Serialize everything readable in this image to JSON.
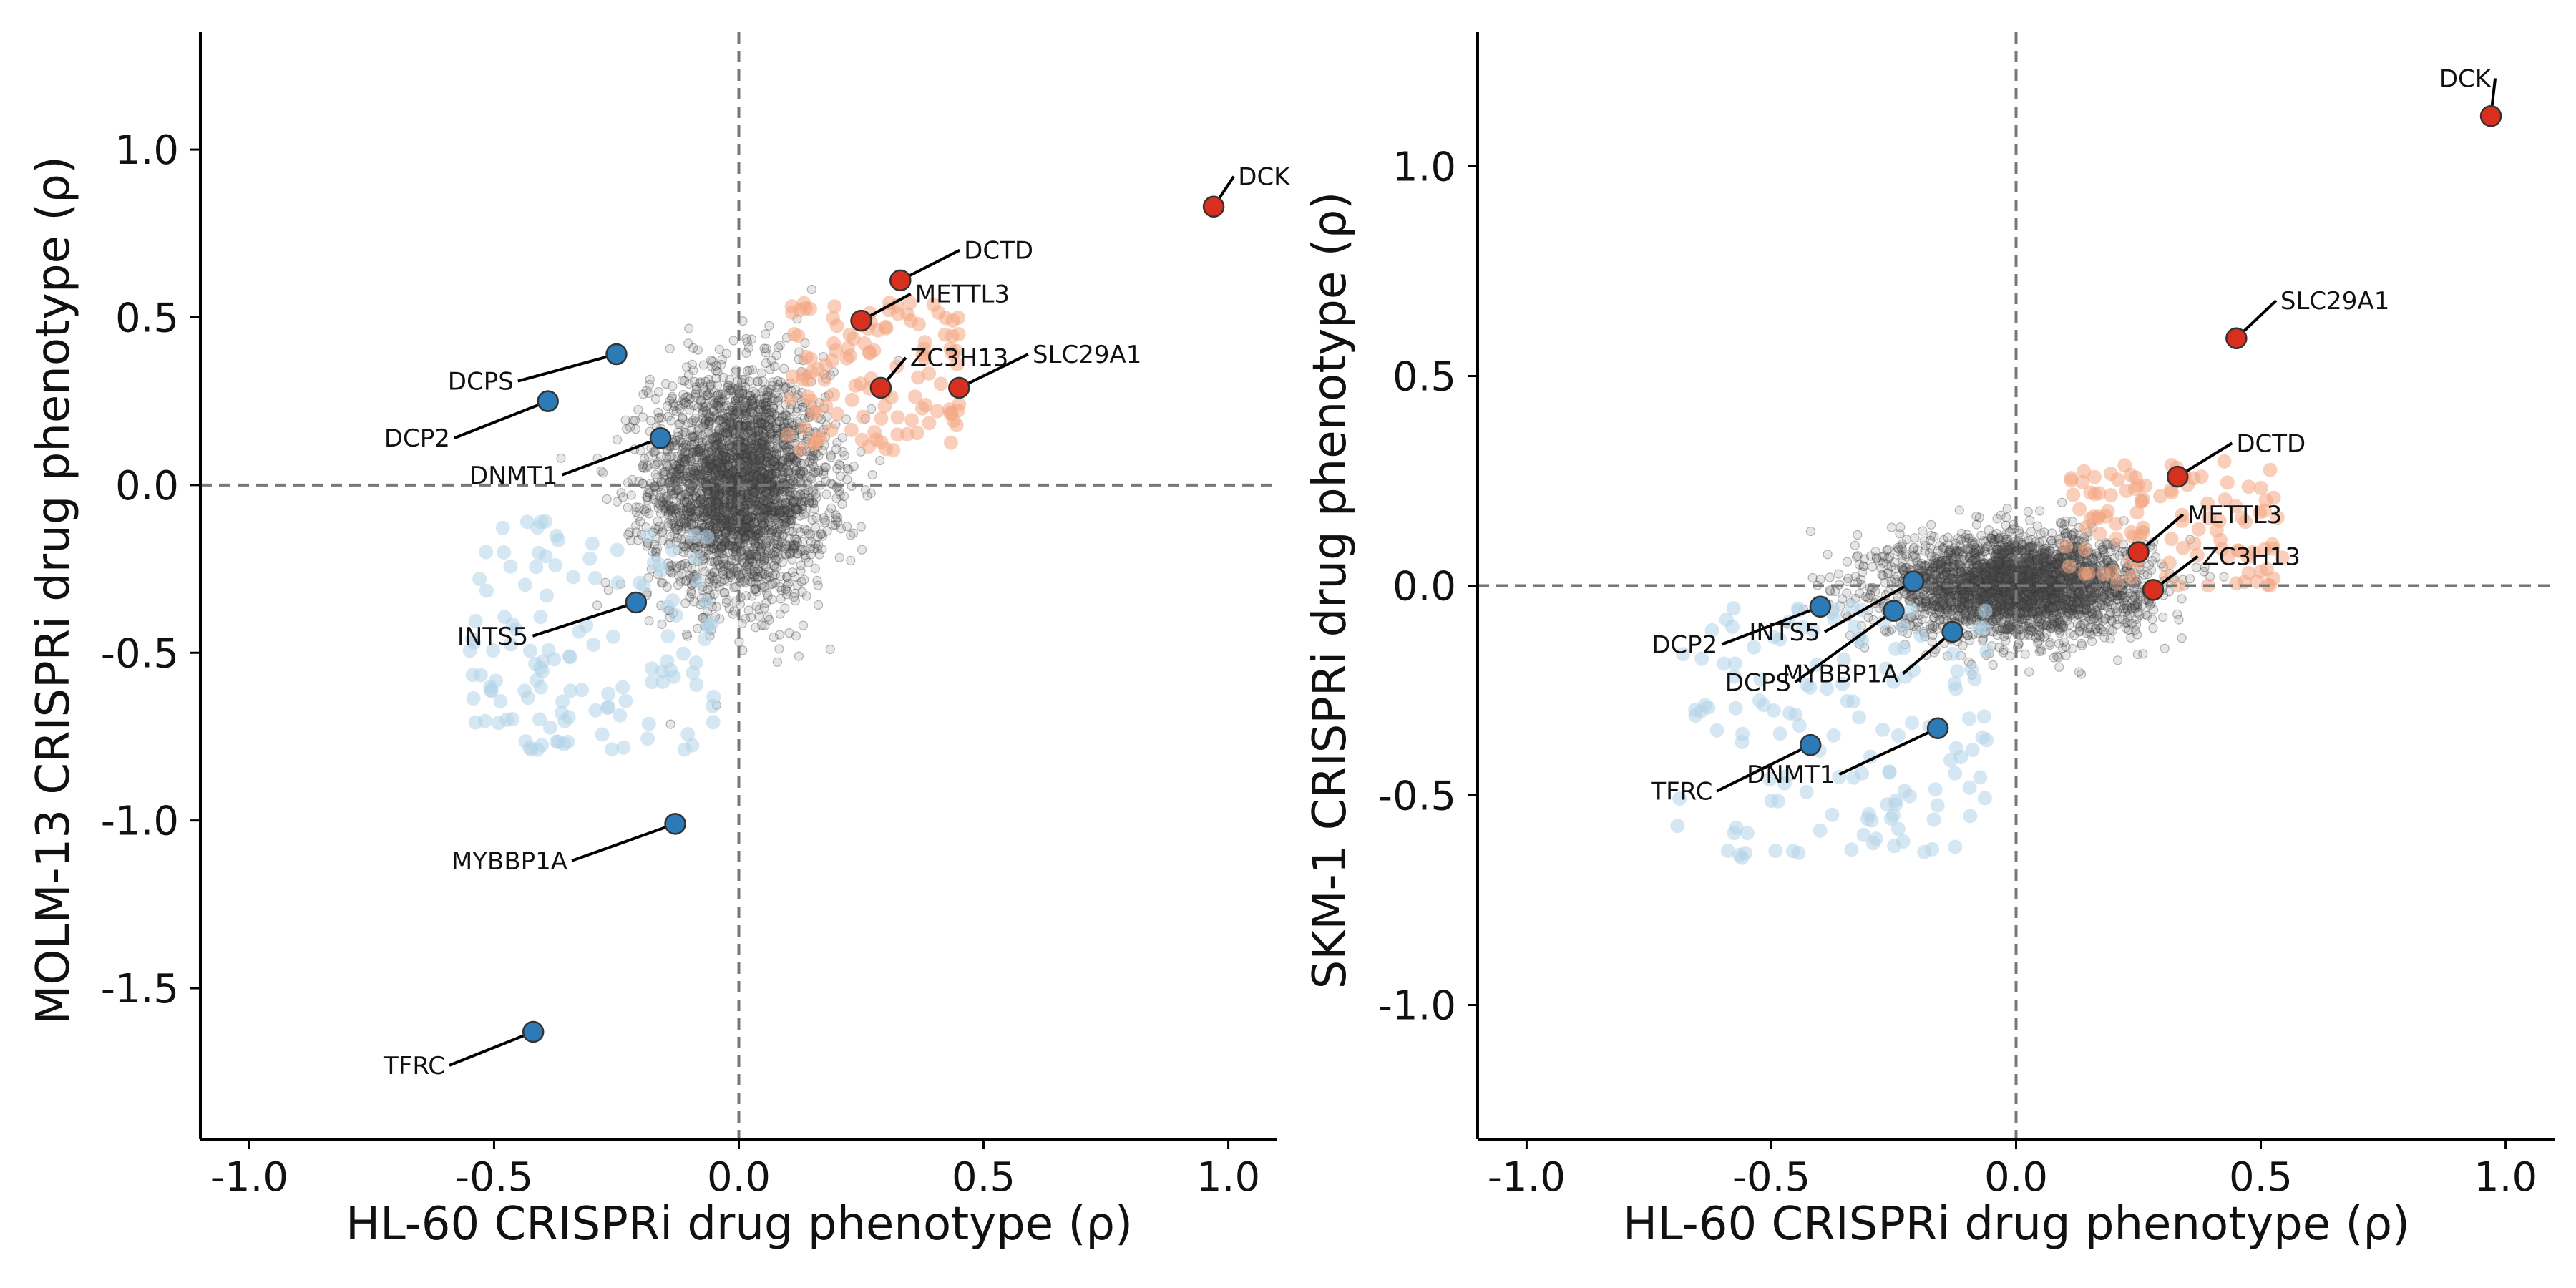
{
  "colors": {
    "axis": "#000000",
    "zero_line": "#777777",
    "background_points": "#555555",
    "point_edge": "#333333",
    "resistance_hit": "#d7301f",
    "sensitivity_hit": "#2c7bb6",
    "resistance_halo": "#f4a582",
    "sensitivity_halo": "#b3d3e8"
  },
  "chart_data": [
    {
      "type": "scatter",
      "xlabel": "HL-60 CRISPRi drug phenotype (ρ)",
      "ylabel": "MOLM-13 CRISPRi drug phenotype (ρ)",
      "xlim": [
        -1.1,
        1.1
      ],
      "ylim": [
        -1.95,
        1.35
      ],
      "xticks": [
        -1.0,
        -0.5,
        0.0,
        0.5,
        1.0
      ],
      "xtick_labels": [
        "-1.0",
        "-0.5",
        "0.0",
        "0.5",
        "1.0"
      ],
      "yticks": [
        -1.5,
        -1.0,
        -0.5,
        0.0,
        0.5,
        1.0
      ],
      "ytick_labels": [
        "-1.5",
        "-1.0",
        "-0.5",
        "0.0",
        "0.5",
        "1.0"
      ],
      "zero_lines": true,
      "grid": false,
      "background_cloud": {
        "center": [
          0.0,
          0.0
        ],
        "spread": [
          0.09,
          0.17
        ],
        "n": 2800
      },
      "resistance_halo": {
        "x_range": [
          0.1,
          0.45
        ],
        "y_range": [
          0.1,
          0.55
        ],
        "n": 120
      },
      "sensitivity_halo": {
        "x_range": [
          -0.55,
          -0.05
        ],
        "y_range": [
          -0.8,
          -0.1
        ],
        "n": 130
      },
      "highlighted_genes": [
        {
          "name": "DCK",
          "x": 0.97,
          "y": 0.83,
          "group": "resistance",
          "label_x": 1.02,
          "label_y": 0.92
        },
        {
          "name": "DCTD",
          "x": 0.33,
          "y": 0.61,
          "group": "resistance",
          "label_x": 0.46,
          "label_y": 0.7
        },
        {
          "name": "METTL3",
          "x": 0.25,
          "y": 0.49,
          "group": "resistance",
          "label_x": 0.36,
          "label_y": 0.57
        },
        {
          "name": "ZC3H13",
          "x": 0.29,
          "y": 0.29,
          "group": "resistance",
          "label_x": 0.35,
          "label_y": 0.38
        },
        {
          "name": "SLC29A1",
          "x": 0.45,
          "y": 0.29,
          "group": "resistance",
          "label_x": 0.6,
          "label_y": 0.39
        },
        {
          "name": "DCPS",
          "x": -0.25,
          "y": 0.39,
          "group": "sensitivity",
          "label_x": -0.46,
          "label_y": 0.31
        },
        {
          "name": "DCP2",
          "x": -0.39,
          "y": 0.25,
          "group": "sensitivity",
          "label_x": -0.59,
          "label_y": 0.14
        },
        {
          "name": "DNMT1",
          "x": -0.16,
          "y": 0.14,
          "group": "sensitivity",
          "label_x": -0.37,
          "label_y": 0.03
        },
        {
          "name": "INTS5",
          "x": -0.21,
          "y": -0.35,
          "group": "sensitivity",
          "label_x": -0.43,
          "label_y": -0.45
        },
        {
          "name": "MYBBP1A",
          "x": -0.13,
          "y": -1.01,
          "group": "sensitivity",
          "label_x": -0.35,
          "label_y": -1.12
        },
        {
          "name": "TFRC",
          "x": -0.42,
          "y": -1.63,
          "group": "sensitivity",
          "label_x": -0.6,
          "label_y": -1.73
        }
      ]
    },
    {
      "type": "scatter",
      "xlabel": "HL-60 CRISPRi drug phenotype (ρ)",
      "ylabel": "SKM-1 CRISPRi drug phenotype (ρ)",
      "xlim": [
        -1.1,
        1.1
      ],
      "ylim": [
        -1.32,
        1.32
      ],
      "xticks": [
        -1.0,
        -0.5,
        0.0,
        0.5,
        1.0
      ],
      "xtick_labels": [
        "-1.0",
        "-0.5",
        "0.0",
        "0.5",
        "1.0"
      ],
      "yticks": [
        -1.0,
        -0.5,
        0.0,
        0.5,
        1.0
      ],
      "ytick_labels": [
        "-1.0",
        "-0.5",
        "0.0",
        "0.5",
        "1.0"
      ],
      "zero_lines": true,
      "grid": false,
      "background_cloud": {
        "center": [
          0.0,
          0.0
        ],
        "spread": [
          0.13,
          0.06
        ],
        "n": 2800
      },
      "resistance_halo": {
        "x_range": [
          0.1,
          0.55
        ],
        "y_range": [
          0.0,
          0.3
        ],
        "n": 110
      },
      "sensitivity_halo": {
        "x_range": [
          -0.7,
          -0.05
        ],
        "y_range": [
          -0.65,
          -0.05
        ],
        "n": 140
      },
      "highlighted_genes": [
        {
          "name": "DCK",
          "x": 0.97,
          "y": 1.12,
          "group": "resistance",
          "label_x": 0.97,
          "label_y": 1.21
        },
        {
          "name": "SLC29A1",
          "x": 0.45,
          "y": 0.59,
          "group": "resistance",
          "label_x": 0.54,
          "label_y": 0.68
        },
        {
          "name": "DCTD",
          "x": 0.33,
          "y": 0.26,
          "group": "resistance",
          "label_x": 0.45,
          "label_y": 0.34
        },
        {
          "name": "METTL3",
          "x": 0.25,
          "y": 0.08,
          "group": "resistance",
          "label_x": 0.35,
          "label_y": 0.17
        },
        {
          "name": "ZC3H13",
          "x": 0.28,
          "y": -0.01,
          "group": "resistance",
          "label_x": 0.38,
          "label_y": 0.07
        },
        {
          "name": "DCP2",
          "x": -0.4,
          "y": -0.05,
          "group": "sensitivity",
          "label_x": -0.61,
          "label_y": -0.14
        },
        {
          "name": "INTS5",
          "x": -0.21,
          "y": 0.01,
          "group": "sensitivity",
          "label_x": -0.4,
          "label_y": -0.11
        },
        {
          "name": "DCPS",
          "x": -0.25,
          "y": -0.06,
          "group": "sensitivity",
          "label_x": -0.46,
          "label_y": -0.23
        },
        {
          "name": "MYBBP1A",
          "x": -0.13,
          "y": -0.11,
          "group": "sensitivity",
          "label_x": -0.24,
          "label_y": -0.21
        },
        {
          "name": "TFRC",
          "x": -0.42,
          "y": -0.38,
          "group": "sensitivity",
          "label_x": -0.62,
          "label_y": -0.49
        },
        {
          "name": "DNMT1",
          "x": -0.16,
          "y": -0.34,
          "group": "sensitivity",
          "label_x": -0.37,
          "label_y": -0.45
        }
      ]
    }
  ]
}
